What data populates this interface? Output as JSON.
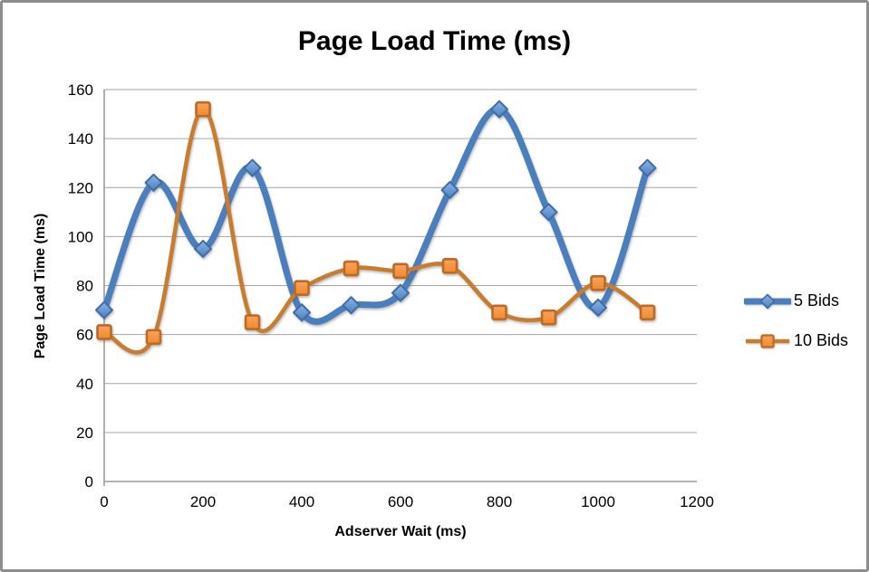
{
  "frame": {
    "background": "#ffffff",
    "border_color": "#8d8d8d"
  },
  "chart_data": {
    "type": "line",
    "title": "Page Load Time (ms)",
    "xlabel": "Adserver Wait (ms)",
    "ylabel": "Page Load Time (ms)",
    "x": [
      0,
      100,
      200,
      300,
      400,
      500,
      600,
      700,
      800,
      900,
      1000,
      1100
    ],
    "series": [
      {
        "name": "5 Bids",
        "values": [
          70,
          122,
          95,
          128,
          69,
          72,
          77,
          119,
          152,
          110,
          71,
          128
        ],
        "line_color": "#4a7ebd",
        "marker": "diamond",
        "marker_gradient": [
          "#8ab3e8",
          "#4b7fbe"
        ],
        "marker_stroke": "#3e6da5"
      },
      {
        "name": "10 Bids",
        "values": [
          61,
          59,
          152,
          65,
          79,
          87,
          86,
          88,
          69,
          67,
          81,
          69
        ],
        "line_color": "#c87c30",
        "marker": "square",
        "marker_gradient": [
          "#f9a45c",
          "#ee8a2f"
        ],
        "marker_stroke": "#bc6a26"
      }
    ],
    "xlim": [
      0,
      1200
    ],
    "ylim": [
      0,
      160
    ],
    "x_ticks": [
      0,
      200,
      400,
      600,
      800,
      1000,
      1200
    ],
    "y_ticks": [
      0,
      20,
      40,
      60,
      80,
      100,
      120,
      140,
      160
    ],
    "grid": "horizontal",
    "gridline_color": "#a6a6a6",
    "axis_color": "#9b9b9b",
    "legend_position": "right",
    "smooth": true
  }
}
